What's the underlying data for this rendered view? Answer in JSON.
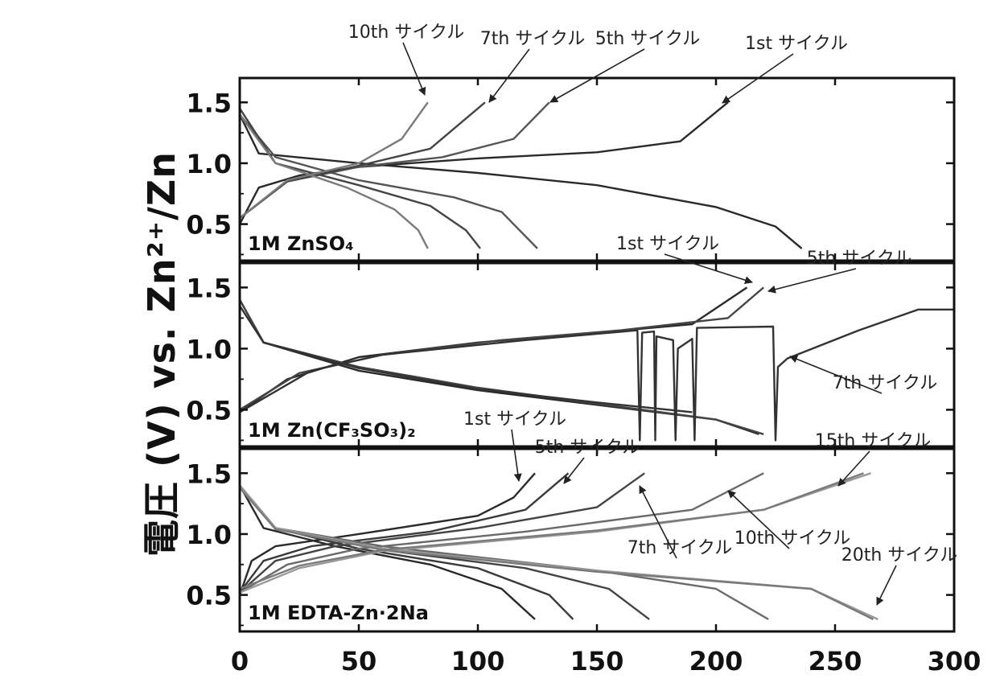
{
  "chart_data": {
    "type": "line",
    "ylabel": "電圧 (V) vs. Zn²⁺/Zn",
    "xlabel": "",
    "xlim": [
      0,
      300
    ],
    "x_ticks": [
      "0",
      "50",
      "100",
      "150",
      "200",
      "250",
      "300"
    ],
    "y_ticks": [
      "0.5",
      "1.0",
      "1.5"
    ],
    "panels": [
      {
        "label": "1M ZnSO₄",
        "ylim": [
          0.2,
          1.7
        ],
        "series": [
          {
            "name": "1st サイクル",
            "color": "#2a2a2a",
            "charge": [
              [
                0,
                0.5
              ],
              [
                8,
                0.8
              ],
              [
                25,
                0.9
              ],
              [
                50,
                0.97
              ],
              [
                100,
                1.04
              ],
              [
                150,
                1.09
              ],
              [
                185,
                1.18
              ],
              [
                205,
                1.5
              ]
            ],
            "discharge": [
              [
                0,
                1.4
              ],
              [
                8,
                1.08
              ],
              [
                50,
                1.0
              ],
              [
                100,
                0.92
              ],
              [
                150,
                0.82
              ],
              [
                200,
                0.64
              ],
              [
                225,
                0.48
              ],
              [
                236,
                0.3
              ]
            ]
          },
          {
            "name": "5th サイクル",
            "color": "#555555",
            "charge": [
              [
                0,
                0.55
              ],
              [
                20,
                0.85
              ],
              [
                50,
                0.97
              ],
              [
                85,
                1.05
              ],
              [
                115,
                1.2
              ],
              [
                130,
                1.5
              ]
            ],
            "discharge": [
              [
                0,
                1.4
              ],
              [
                15,
                1.05
              ],
              [
                50,
                0.86
              ],
              [
                90,
                0.72
              ],
              [
                110,
                0.6
              ],
              [
                125,
                0.3
              ]
            ]
          },
          {
            "name": "7th サイクル",
            "color": "#444444",
            "charge": [
              [
                0,
                0.55
              ],
              [
                20,
                0.85
              ],
              [
                50,
                0.98
              ],
              [
                80,
                1.12
              ],
              [
                103,
                1.5
              ]
            ],
            "discharge": [
              [
                0,
                1.45
              ],
              [
                15,
                1.0
              ],
              [
                50,
                0.82
              ],
              [
                80,
                0.65
              ],
              [
                95,
                0.45
              ],
              [
                101,
                0.3
              ]
            ]
          },
          {
            "name": "10th サイクル",
            "color": "#7a7a7a",
            "charge": [
              [
                0,
                0.55
              ],
              [
                20,
                0.86
              ],
              [
                50,
                1.0
              ],
              [
                68,
                1.2
              ],
              [
                79,
                1.5
              ]
            ],
            "discharge": [
              [
                0,
                1.4
              ],
              [
                15,
                1.0
              ],
              [
                45,
                0.8
              ],
              [
                65,
                0.62
              ],
              [
                75,
                0.45
              ],
              [
                79,
                0.3
              ]
            ]
          }
        ]
      },
      {
        "label": "1M Zn(CF₃SO₃)₂",
        "ylim": [
          0.2,
          1.7
        ],
        "series": [
          {
            "name": "1st サイクル",
            "color": "#2a2a2a",
            "charge": [
              [
                0,
                0.48
              ],
              [
                20,
                0.75
              ],
              [
                50,
                0.93
              ],
              [
                100,
                1.05
              ],
              [
                150,
                1.13
              ],
              [
                190,
                1.2
              ],
              [
                213,
                1.5
              ]
            ],
            "discharge": [
              [
                0,
                1.4
              ],
              [
                10,
                1.05
              ],
              [
                50,
                0.82
              ],
              [
                100,
                0.66
              ],
              [
                150,
                0.54
              ],
              [
                200,
                0.42
              ],
              [
                218,
                0.3
              ]
            ]
          },
          {
            "name": "5th サイクル",
            "color": "#444444",
            "charge": [
              [
                0,
                0.5
              ],
              [
                25,
                0.8
              ],
              [
                60,
                0.95
              ],
              [
                110,
                1.07
              ],
              [
                160,
                1.15
              ],
              [
                205,
                1.25
              ],
              [
                220,
                1.5
              ]
            ],
            "discharge": [
              [
                0,
                1.4
              ],
              [
                10,
                1.05
              ],
              [
                50,
                0.85
              ],
              [
                100,
                0.68
              ],
              [
                150,
                0.55
              ],
              [
                200,
                0.42
              ],
              [
                220,
                0.3
              ]
            ]
          },
          {
            "name": "7th サイクル",
            "color": "#333333",
            "charge": [
              [
                0,
                0.48
              ],
              [
                30,
                0.82
              ],
              [
                60,
                0.95
              ],
              [
                120,
                1.07
              ],
              [
                167,
                1.15
              ],
              [
                168,
                0.25
              ],
              [
                169,
                1.13
              ],
              [
                174,
                1.14
              ],
              [
                174.5,
                0.25
              ],
              [
                175,
                1.1
              ],
              [
                182,
                1.07
              ],
              [
                183,
                0.25
              ],
              [
                184,
                1.0
              ],
              [
                190,
                1.08
              ],
              [
                191,
                0.25
              ],
              [
                192,
                1.17
              ],
              [
                224,
                1.18
              ],
              [
                225,
                0.25
              ],
              [
                226,
                0.85
              ],
              [
                230,
                0.92
              ],
              [
                260,
                1.15
              ],
              [
                285,
                1.32
              ],
              [
                300,
                1.32
              ]
            ],
            "discharge": [
              [
                0,
                1.35
              ],
              [
                10,
                1.05
              ],
              [
                50,
                0.84
              ],
              [
                100,
                0.67
              ],
              [
                150,
                0.56
              ],
              [
                190,
                0.48
              ]
            ]
          }
        ]
      },
      {
        "label": "1M EDTA-Zn·2Na",
        "ylim": [
          0.2,
          1.7
        ],
        "series": [
          {
            "name": "1st サイクル",
            "color": "#2a2a2a",
            "charge": [
              [
                0,
                0.5
              ],
              [
                5,
                0.78
              ],
              [
                15,
                0.9
              ],
              [
                50,
                1.0
              ],
              [
                100,
                1.15
              ],
              [
                115,
                1.3
              ],
              [
                124,
                1.5
              ]
            ],
            "discharge": [
              [
                0,
                1.4
              ],
              [
                10,
                1.05
              ],
              [
                40,
                0.9
              ],
              [
                80,
                0.75
              ],
              [
                110,
                0.55
              ],
              [
                124,
                0.3
              ]
            ]
          },
          {
            "name": "5th サイクル",
            "color": "#3a3a3a",
            "charge": [
              [
                0,
                0.52
              ],
              [
                10,
                0.78
              ],
              [
                30,
                0.9
              ],
              [
                80,
                1.02
              ],
              [
                120,
                1.2
              ],
              [
                138,
                1.5
              ]
            ],
            "discharge": [
              [
                0,
                1.4
              ],
              [
                15,
                1.05
              ],
              [
                50,
                0.88
              ],
              [
                100,
                0.72
              ],
              [
                130,
                0.5
              ],
              [
                140,
                0.3
              ]
            ]
          },
          {
            "name": "7th サイクル",
            "color": "#444444",
            "charge": [
              [
                0,
                0.52
              ],
              [
                15,
                0.78
              ],
              [
                40,
                0.9
              ],
              [
                100,
                1.05
              ],
              [
                150,
                1.22
              ],
              [
                170,
                1.5
              ]
            ],
            "discharge": [
              [
                0,
                1.4
              ],
              [
                15,
                1.05
              ],
              [
                60,
                0.87
              ],
              [
                120,
                0.72
              ],
              [
                155,
                0.55
              ],
              [
                172,
                0.3
              ]
            ]
          },
          {
            "name": "10th サイクル",
            "color": "#6a6a6a",
            "charge": [
              [
                0,
                0.52
              ],
              [
                20,
                0.75
              ],
              [
                50,
                0.88
              ],
              [
                120,
                1.02
              ],
              [
                190,
                1.2
              ],
              [
                220,
                1.5
              ]
            ],
            "discharge": [
              [
                0,
                1.4
              ],
              [
                15,
                1.05
              ],
              [
                60,
                0.9
              ],
              [
                150,
                0.7
              ],
              [
                200,
                0.55
              ],
              [
                222,
                0.3
              ]
            ]
          },
          {
            "name": "15th サイクル",
            "color": "#999999",
            "charge": [
              [
                0,
                0.52
              ],
              [
                25,
                0.72
              ],
              [
                60,
                0.86
              ],
              [
                150,
                1.02
              ],
              [
                220,
                1.2
              ],
              [
                265,
                1.5
              ]
            ],
            "discharge": [
              [
                0,
                1.4
              ],
              [
                15,
                1.05
              ],
              [
                60,
                0.88
              ],
              [
                150,
                0.7
              ],
              [
                240,
                0.55
              ],
              [
                268,
                0.3
              ]
            ]
          },
          {
            "name": "20th サイクル",
            "color": "#7a7a7a",
            "charge": [
              [
                0,
                0.55
              ],
              [
                25,
                0.74
              ],
              [
                60,
                0.87
              ],
              [
                150,
                1.03
              ],
              [
                220,
                1.2
              ],
              [
                262,
                1.5
              ]
            ],
            "discharge": [
              [
                0,
                1.38
              ],
              [
                15,
                1.04
              ],
              [
                60,
                0.87
              ],
              [
                150,
                0.69
              ],
              [
                240,
                0.55
              ],
              [
                266,
                0.3
              ]
            ]
          }
        ]
      }
    ],
    "annotations": [
      {
        "panel": 0,
        "label": "10th サイクル",
        "point": [
          79,
          1.5
        ]
      },
      {
        "panel": 0,
        "label": "7th サイクル",
        "point": [
          103,
          1.5
        ]
      },
      {
        "panel": 0,
        "label": "5th サイクル",
        "point": [
          130,
          1.5
        ]
      },
      {
        "panel": 0,
        "label": "1st サイクル",
        "point": [
          205,
          1.5
        ]
      },
      {
        "panel": 1,
        "label": "1st サイクル",
        "point": [
          213,
          1.5
        ]
      },
      {
        "panel": 1,
        "label": "5th サイクル",
        "point": [
          220,
          1.5
        ]
      },
      {
        "panel": 1,
        "label": "7th サイクル",
        "point": [
          229,
          0.9
        ]
      },
      {
        "panel": 2,
        "label": "1st サイクル",
        "point": [
          122,
          1.45
        ]
      },
      {
        "panel": 2,
        "label": "5th サイクル",
        "point": [
          137,
          1.45
        ]
      },
      {
        "panel": 2,
        "label": "7th サイクル",
        "point": [
          168,
          1.45
        ]
      },
      {
        "panel": 2,
        "label": "10th サイクル",
        "point": [
          205,
          1.3
        ]
      },
      {
        "panel": 2,
        "label": "15th サイクル",
        "point": [
          250,
          1.48
        ]
      },
      {
        "panel": 2,
        "label": "20th サイクル",
        "point": [
          268,
          0.3
        ]
      }
    ]
  }
}
